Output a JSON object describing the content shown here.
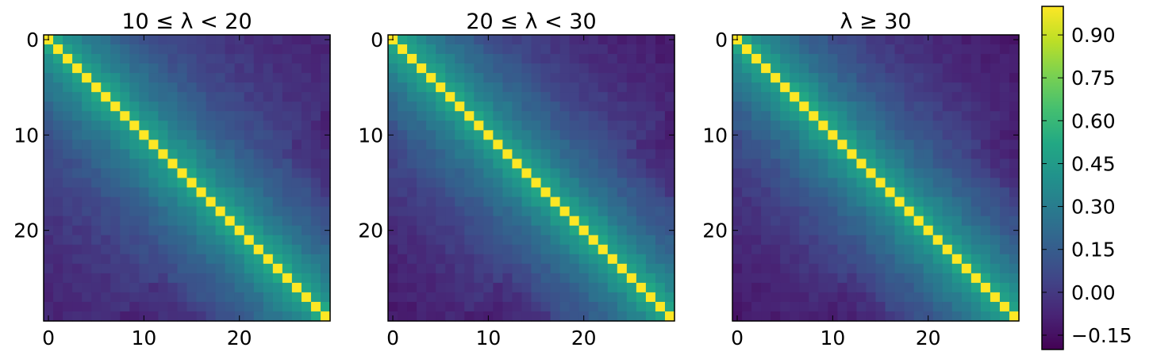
{
  "chart_data": {
    "type": "heatmap",
    "colormap": "viridis",
    "matrix_size": 30,
    "panels": [
      {
        "title": "10 ≤ λ < 20",
        "off_diagonal_contrast": 0.85
      },
      {
        "title": "20 ≤ λ < 30",
        "off_diagonal_contrast": 1.0
      },
      {
        "title": "λ ≥ 30",
        "off_diagonal_contrast": 1.05
      }
    ],
    "x_ticks": [
      "0",
      "10",
      "20"
    ],
    "y_ticks": [
      "0",
      "10",
      "20"
    ],
    "x_tick_values": [
      0,
      10,
      20
    ],
    "y_tick_values": [
      0,
      10,
      20
    ],
    "colorbar": {
      "range": [
        -0.2,
        1.0
      ],
      "tick_values": [
        0.9,
        0.75,
        0.6,
        0.45,
        0.3,
        0.15,
        0.0,
        -0.15
      ],
      "tick_labels": [
        "0.90",
        "0.75",
        "0.60",
        "0.45",
        "0.30",
        "0.15",
        "0.00",
        "−0.15"
      ]
    },
    "diagonal_value": 1.0
  }
}
